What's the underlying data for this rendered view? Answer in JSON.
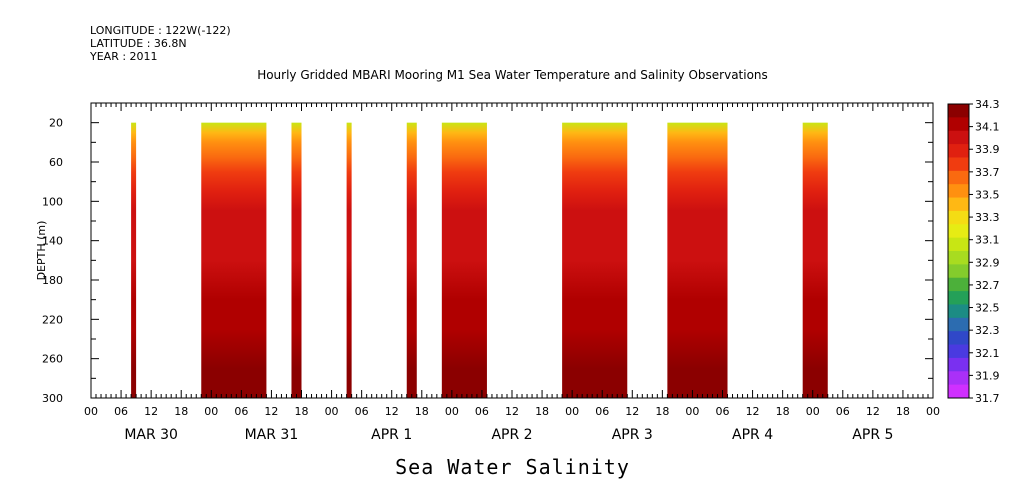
{
  "header": {
    "longitude": "LONGITUDE : 122W(-122)",
    "latitude": "LATITUDE : 36.8N",
    "year": "YEAR : 2011"
  },
  "chart_data": {
    "type": "heatmap",
    "title": "Hourly Gridded MBARI Mooring M1 Sea Water Temperature and Salinity Observations",
    "xlabel": "Sea Water Salinity",
    "ylabel": "DEPTH (m)",
    "ylim": [
      300,
      0
    ],
    "y_ticks": [
      20,
      60,
      100,
      140,
      180,
      220,
      260,
      300
    ],
    "x_range_hours": [
      0,
      168
    ],
    "x_ticks": [
      "00",
      "06",
      "12",
      "18",
      "00",
      "06",
      "12",
      "18",
      "00",
      "06",
      "12",
      "18",
      "00",
      "06",
      "12",
      "18",
      "00",
      "06",
      "12",
      "18",
      "00",
      "06",
      "12",
      "18",
      "00",
      "06",
      "12",
      "18",
      "00"
    ],
    "day_labels": [
      "MAR 30",
      "MAR 31",
      "APR  1",
      "APR  2",
      "APR  3",
      "APR  4",
      "APR  5"
    ],
    "colorbar": {
      "levels": [
        "34.3",
        "34.1",
        "33.9",
        "33.7",
        "33.5",
        "33.3",
        "33.1",
        "32.9",
        "32.7",
        "32.5",
        "32.3",
        "32.1",
        "31.9",
        "31.7"
      ],
      "colors": [
        "#8b0000",
        "#b00000",
        "#cc1010",
        "#e02010",
        "#f03c10",
        "#fa6a10",
        "#ff9010",
        "#ffb814",
        "#f4dc14",
        "#e6ec14",
        "#c8e614",
        "#a8dc20",
        "#84cc2c",
        "#4cb03a",
        "#24a058",
        "#1c8c84",
        "#2c6cb0",
        "#3048c8",
        "#4a3ae0",
        "#7a30f0",
        "#aa30f8",
        "#d030ff"
      ]
    },
    "data_blocks": [
      {
        "start_hour": 8,
        "end_hour": 9
      },
      {
        "start_hour": 22,
        "end_hour": 35
      },
      {
        "start_hour": 40,
        "end_hour": 42
      },
      {
        "start_hour": 51,
        "end_hour": 52
      },
      {
        "start_hour": 63,
        "end_hour": 65
      },
      {
        "start_hour": 70,
        "end_hour": 79
      },
      {
        "start_hour": 94,
        "end_hour": 107
      },
      {
        "start_hour": 115,
        "end_hour": 127
      },
      {
        "start_hour": 142,
        "end_hour": 147
      }
    ],
    "salinity_profile": [
      {
        "depth": 20,
        "value": 33.1
      },
      {
        "depth": 30,
        "value": 33.4
      },
      {
        "depth": 40,
        "value": 33.6
      },
      {
        "depth": 55,
        "value": 33.7
      },
      {
        "depth": 70,
        "value": 33.85
      },
      {
        "depth": 90,
        "value": 33.95
      },
      {
        "depth": 110,
        "value": 34.0
      },
      {
        "depth": 130,
        "value": 34.05
      },
      {
        "depth": 160,
        "value": 34.1
      },
      {
        "depth": 200,
        "value": 34.15
      },
      {
        "depth": 230,
        "value": 34.22
      },
      {
        "depth": 270,
        "value": 34.27
      },
      {
        "depth": 300,
        "value": 34.3
      }
    ]
  }
}
